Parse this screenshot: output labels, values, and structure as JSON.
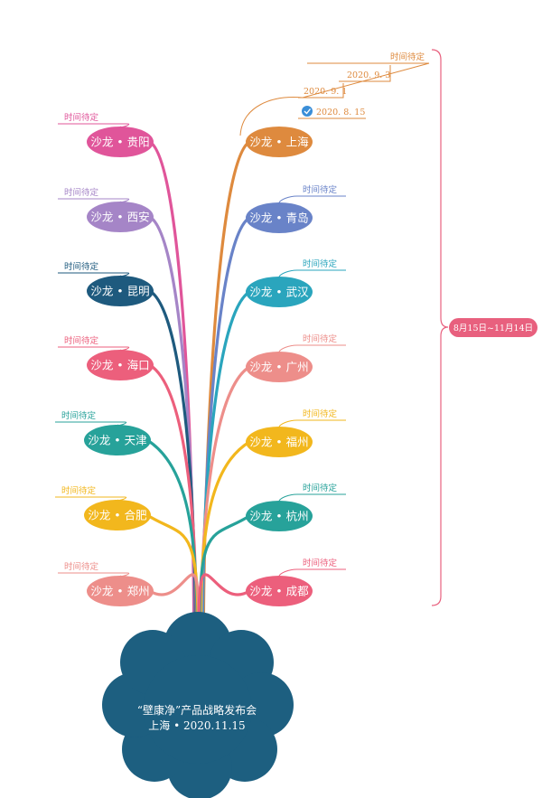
{
  "root": {
    "title": "“壁康净”产品战略发布会",
    "subtitle": "上海 • 2020.11.15",
    "color": "#1d5f80"
  },
  "range_label": "8月15日~11月14日",
  "range_color": "#e8607e",
  "left_nodes": [
    {
      "id": "guiyang",
      "label": "沙龙 • 贵阳",
      "note": "时间待定",
      "color": "#e0559a"
    },
    {
      "id": "xian",
      "label": "沙龙 • 西安",
      "note": "时间待定",
      "color": "#a585c7"
    },
    {
      "id": "kunming",
      "label": "沙龙 • 昆明",
      "note": "时间待定",
      "color": "#1e5a7e"
    },
    {
      "id": "haikou",
      "label": "沙龙 • 海口",
      "note": "时间待定",
      "color": "#ec5f7c"
    },
    {
      "id": "tianjin",
      "label": "沙龙 • 天津",
      "note": "时间待定",
      "color": "#27a29a"
    },
    {
      "id": "hefei",
      "label": "沙龙 • 合肥",
      "note": "时间待定",
      "color": "#f2b71d"
    },
    {
      "id": "zhengzhou",
      "label": "沙龙 • 郑州",
      "note": "时间待定",
      "color": "#ed8e8a"
    }
  ],
  "right_nodes": [
    {
      "id": "shanghai",
      "label": "沙龙 • 上海",
      "notes": [
        "时间待定",
        "2020. 9. 3",
        "2020. 9. 1",
        "2020. 8. 15"
      ],
      "color": "#de8a3e"
    },
    {
      "id": "qingdao",
      "label": "沙龙 • 青岛",
      "note": "时间待定",
      "color": "#6983c8"
    },
    {
      "id": "wuhan",
      "label": "沙龙 • 武汉",
      "note": "时间待定",
      "color": "#2aa5bd"
    },
    {
      "id": "guangzhou",
      "label": "沙龙 • 广州",
      "note": "时间待定",
      "color": "#ed8e8a"
    },
    {
      "id": "fuzhou",
      "label": "沙龙 • 福州",
      "note": "时间待定",
      "color": "#f2b71d"
    },
    {
      "id": "hangzhou",
      "label": "沙龙 • 杭州",
      "note": "时间待定",
      "color": "#27a29a"
    },
    {
      "id": "chengdu",
      "label": "沙龙 • 成都",
      "note": "时间待定",
      "color": "#ec5f7c"
    }
  ],
  "check_icon": "check-circle-icon"
}
